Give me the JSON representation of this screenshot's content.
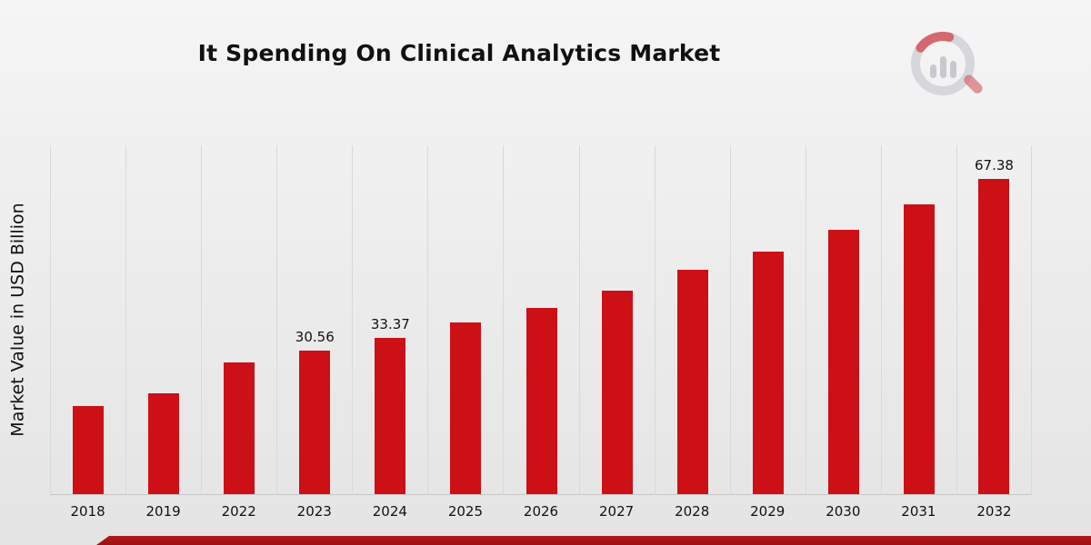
{
  "page": {
    "title": "It Spending On Clinical Analytics Market"
  },
  "chart_data": {
    "type": "bar",
    "title": "It Spending On Clinical Analytics Market",
    "xlabel": "",
    "ylabel": "Market Value in USD Billion",
    "categories": [
      "2018",
      "2019",
      "2022",
      "2023",
      "2024",
      "2025",
      "2026",
      "2027",
      "2028",
      "2029",
      "2030",
      "2031",
      "2032"
    ],
    "values": [
      18.9,
      21.6,
      28.2,
      30.56,
      33.37,
      36.7,
      39.8,
      43.4,
      47.9,
      51.9,
      56.5,
      61.8,
      67.38
    ],
    "data_labels": {
      "2023": "30.56",
      "2024": "33.37",
      "2032": "67.38"
    },
    "ylim": [
      0,
      74.5
    ],
    "grid": "vertical",
    "legend": "none",
    "bar_color": "#cc1016"
  },
  "colors": {
    "bar_red": "#cc1016",
    "footer_red": "#a41114",
    "gridline": "#d9d9d9",
    "background_top": "#f5f5f5",
    "background_bottom": "#e4e4e4",
    "logo_gray": "#d3d4da",
    "logo_red": "#cf4a4f"
  },
  "logo": {
    "name": "market-research-brand-logo"
  }
}
